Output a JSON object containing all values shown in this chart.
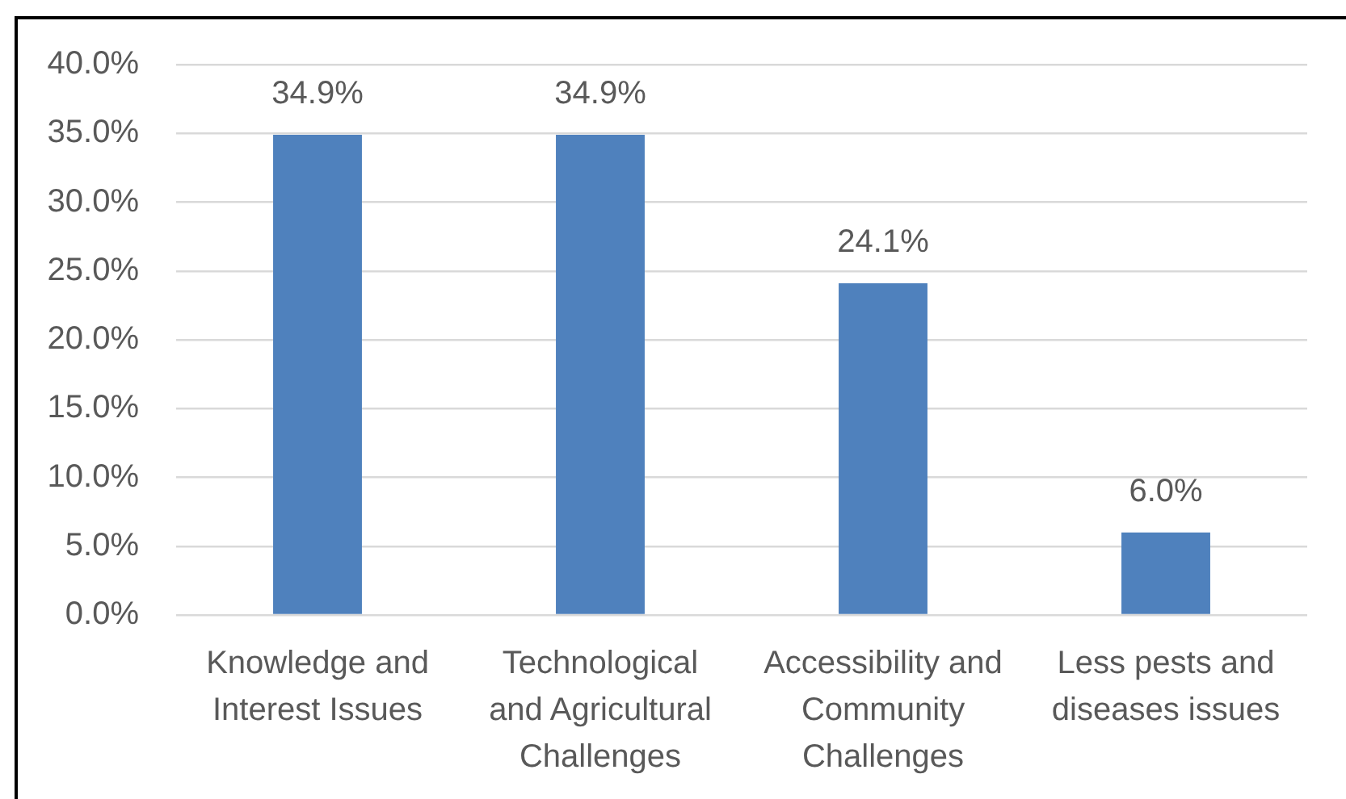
{
  "chart_data": {
    "type": "bar",
    "categories": [
      "Knowledge and Interest Issues",
      "Technological and Agricultural Challenges",
      "Accessibility and Community Challenges",
      "Less pests and diseases issues"
    ],
    "values": [
      34.9,
      34.9,
      24.1,
      6.0
    ],
    "value_labels": [
      "34.9%",
      "34.9%",
      "24.1%",
      "6.0%"
    ],
    "color": "#4f81bd",
    "ylim": [
      0,
      40
    ],
    "yticks": [
      {
        "value": 0,
        "label": "0.0%"
      },
      {
        "value": 5,
        "label": "5.0%"
      },
      {
        "value": 10,
        "label": "10.0%"
      },
      {
        "value": 15,
        "label": "15.0%"
      },
      {
        "value": 20,
        "label": "20.0%"
      },
      {
        "value": 25,
        "label": "25.0%"
      },
      {
        "value": 30,
        "label": "30.0%"
      },
      {
        "value": 35,
        "label": "35.0%"
      },
      {
        "value": 40,
        "label": "40.0%"
      }
    ],
    "grid": "y"
  }
}
